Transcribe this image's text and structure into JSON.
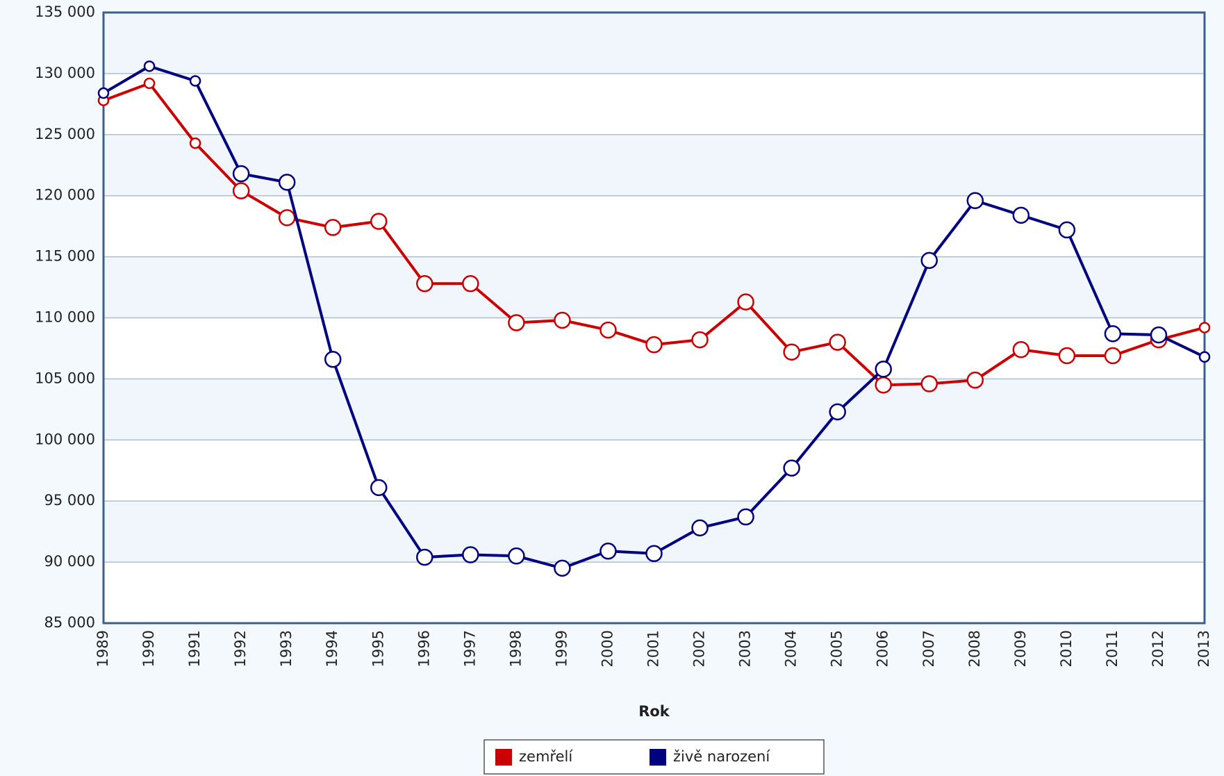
{
  "chart_data": {
    "type": "line",
    "x_label": "Rok",
    "categories": [
      "1989",
      "1990",
      "1991",
      "1992",
      "1993",
      "1994",
      "1995",
      "1996",
      "1997",
      "1998",
      "1999",
      "2000",
      "2001",
      "2002",
      "2003",
      "2004",
      "2005",
      "2006",
      "2007",
      "2008",
      "2009",
      "2010",
      "2011",
      "2012",
      "2013"
    ],
    "series": [
      {
        "name": "zemřelí",
        "color": "#cc0000",
        "values": [
          127800,
          129200,
          124300,
          120400,
          118200,
          117400,
          117900,
          112800,
          112800,
          109600,
          109800,
          109000,
          107800,
          108200,
          111300,
          107200,
          108000,
          104500,
          104600,
          104900,
          107400,
          106900,
          106900,
          108200,
          109200
        ]
      },
      {
        "name": "živě narození",
        "color": "#000080",
        "values": [
          128400,
          130600,
          129400,
          121800,
          121100,
          106600,
          96100,
          90400,
          90600,
          90500,
          89500,
          90900,
          90700,
          92800,
          93700,
          97700,
          102300,
          105800,
          114700,
          119600,
          118400,
          117200,
          108700,
          108600,
          106800
        ]
      }
    ],
    "ylim": [
      85000,
      135000
    ],
    "yticks": [
      {
        "value": 85000,
        "label": "85 000"
      },
      {
        "value": 90000,
        "label": "90 000"
      },
      {
        "value": 95000,
        "label": "95 000"
      },
      {
        "value": 100000,
        "label": "100 000"
      },
      {
        "value": 105000,
        "label": "105 000"
      },
      {
        "value": 110000,
        "label": "110 000"
      },
      {
        "value": 115000,
        "label": "115 000"
      },
      {
        "value": 120000,
        "label": "120 000"
      },
      {
        "value": 125000,
        "label": "125 000"
      },
      {
        "value": 130000,
        "label": "130 000"
      },
      {
        "value": 135000,
        "label": "135 000"
      }
    ],
    "grid": true,
    "legend": "bottom"
  }
}
